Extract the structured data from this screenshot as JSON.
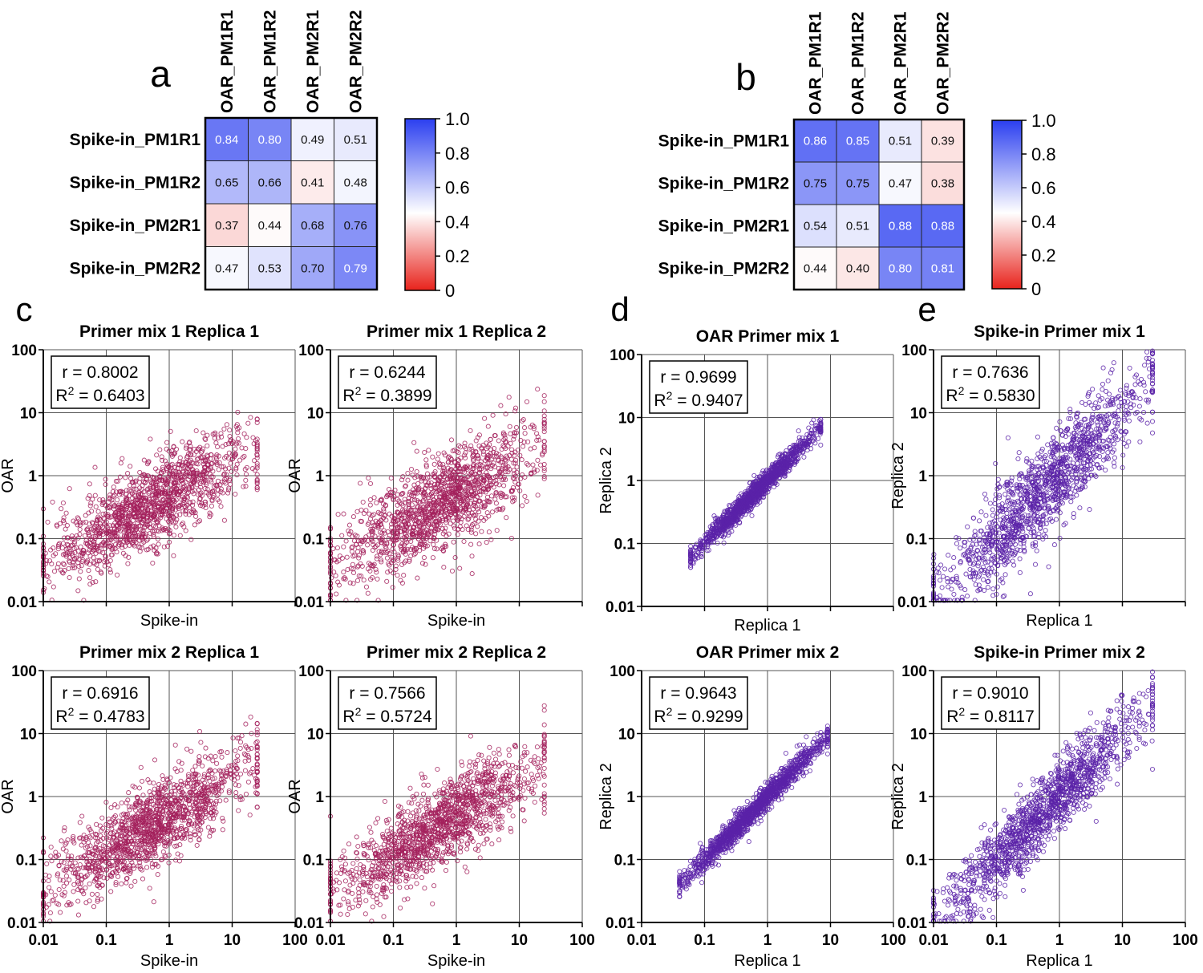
{
  "colors": {
    "hm_low": "#e8231c",
    "hm_mid": "#ffffff",
    "hm_high": "#2b3ff0",
    "scatter_c": "#a3205c",
    "scatter_de": "#5a22a8",
    "grid": "#555555"
  },
  "heatmaps": [
    {
      "panel": "a",
      "columns": [
        "OAR_PM1R1",
        "OAR_PM1R2",
        "OAR_PM2R1",
        "OAR_PM2R2"
      ],
      "rows": [
        "Spike-in_PM1R1",
        "Spike-in_PM1R2",
        "Spike-in_PM2R1",
        "Spike-in_PM2R2"
      ],
      "values": [
        [
          0.84,
          0.8,
          0.49,
          0.51
        ],
        [
          0.65,
          0.66,
          0.41,
          0.48
        ],
        [
          0.37,
          0.44,
          0.68,
          0.76
        ],
        [
          0.47,
          0.53,
          0.7,
          0.79
        ]
      ],
      "labels": [
        [
          "0.84",
          "0.80",
          "0.49",
          "0.51"
        ],
        [
          "0.65",
          "0.66",
          "0.41",
          "0.48"
        ],
        [
          "0.37",
          "0.44",
          "0.68",
          "0.76"
        ],
        [
          "0.47",
          "0.53",
          "0.70",
          "0.79"
        ]
      ],
      "colorbar_ticks": [
        "1.0",
        "0.8",
        "0.6",
        "0.4",
        "0.2",
        "0"
      ]
    },
    {
      "panel": "b",
      "columns": [
        "OAR_PM1R1",
        "OAR_PM1R2",
        "OAR_PM2R1",
        "OAR_PM2R2"
      ],
      "rows": [
        "Spike-in_PM1R1",
        "Spike-in_PM1R2",
        "Spike-in_PM2R1",
        "Spike-in_PM2R2"
      ],
      "values": [
        [
          0.86,
          0.85,
          0.51,
          0.39
        ],
        [
          0.75,
          0.75,
          0.47,
          0.38
        ],
        [
          0.54,
          0.51,
          0.88,
          0.88
        ],
        [
          0.44,
          0.4,
          0.8,
          0.81
        ]
      ],
      "labels": [
        [
          "0.86",
          "0.85",
          "0.51",
          "0.39"
        ],
        [
          "0.75",
          "0.75",
          "0.47",
          "0.38"
        ],
        [
          "0.54",
          "0.51",
          "0.88",
          "0.88"
        ],
        [
          "0.44",
          "0.40",
          "0.80",
          "0.81"
        ]
      ],
      "colorbar_ticks": [
        "1.0",
        "0.8",
        "0.6",
        "0.4",
        "0.2",
        "0"
      ]
    }
  ],
  "scatter_panel_letters": [
    "c",
    "d",
    "e"
  ],
  "chart_data": [
    {
      "type": "scatter",
      "panel": "c",
      "title": "Primer mix 1 Replica 1",
      "xlabel": "Spike-in",
      "ylabel": "OAR",
      "r": "r = 0.8002",
      "r2": "0.6403",
      "r2_prefix": "R",
      "r2_sup": "2",
      "r2_eq": " = ",
      "xlim": [
        0.01,
        100
      ],
      "ylim": [
        0.01,
        100
      ],
      "scale": "log",
      "show_x_ticks": false,
      "x_ticks": [
        "0.01",
        "0.1",
        "1",
        "10",
        "100"
      ],
      "y_ticks": [
        "100",
        "10",
        "1",
        "0.1",
        "0.01"
      ],
      "n_points": 1400,
      "point_spread": 0.33,
      "slope": 0.55,
      "x_range": [
        0.01,
        25
      ],
      "color_key": "scatter_c"
    },
    {
      "type": "scatter",
      "panel": "c",
      "title": "Primer mix 1 Replica 2",
      "xlabel": "Spike-in",
      "ylabel": "OAR",
      "r": "r = 0.6244",
      "r2": "0.3899",
      "r2_prefix": "R",
      "r2_sup": "2",
      "r2_eq": " = ",
      "xlim": [
        0.01,
        100
      ],
      "ylim": [
        0.01,
        100
      ],
      "scale": "log",
      "show_x_ticks": false,
      "x_ticks": [
        "0.01",
        "0.1",
        "1",
        "10",
        "100"
      ],
      "y_ticks": [
        "100",
        "10",
        "1",
        "0.1",
        "0.01"
      ],
      "n_points": 1400,
      "point_spread": 0.38,
      "slope": 0.55,
      "x_range": [
        0.01,
        25
      ],
      "color_key": "scatter_c"
    },
    {
      "type": "scatter",
      "panel": "d",
      "title": "OAR Primer mix 1",
      "xlabel": "Replica 1",
      "ylabel": "Replica 2",
      "r": "r = 0.9699",
      "r2": "0.9407",
      "r2_prefix": "R",
      "r2_sup": "2",
      "r2_eq": " = ",
      "xlim": [
        0.01,
        100
      ],
      "ylim": [
        0.01,
        100
      ],
      "scale": "log",
      "show_x_ticks": false,
      "x_ticks": [
        "0.01",
        "0.1",
        "1",
        "10",
        "100"
      ],
      "y_ticks": [
        "100",
        "10",
        "1",
        "0.1",
        "0.01"
      ],
      "n_points": 1400,
      "point_spread": 0.09,
      "slope": 1.0,
      "x_range": [
        0.06,
        7
      ],
      "color_key": "scatter_de"
    },
    {
      "type": "scatter",
      "panel": "e",
      "title": "Spike-in Primer mix 1",
      "xlabel": "Replica 1",
      "ylabel": "Replica 2",
      "r": "r = 0.7636",
      "r2": "0.5830",
      "r2_prefix": "R",
      "r2_sup": "2",
      "r2_eq": " = ",
      "xlim": [
        0.01,
        100
      ],
      "ylim": [
        0.01,
        100
      ],
      "scale": "log",
      "show_x_ticks": false,
      "x_ticks": [
        "0.01",
        "0.1",
        "1",
        "10",
        "100"
      ],
      "y_ticks": [
        "100",
        "10",
        "1",
        "0.1",
        "0.01"
      ],
      "n_points": 1400,
      "point_spread": 0.38,
      "slope": 1.0,
      "x_range": [
        0.01,
        30
      ],
      "color_key": "scatter_de"
    },
    {
      "type": "scatter",
      "panel": "c",
      "title": "Primer mix 2 Replica 1",
      "xlabel": "Spike-in",
      "ylabel": "OAR",
      "r": "r = 0.6916",
      "r2": "0.4783",
      "r2_prefix": "R",
      "r2_sup": "2",
      "r2_eq": " = ",
      "xlim": [
        0.01,
        100
      ],
      "ylim": [
        0.01,
        100
      ],
      "scale": "log",
      "show_x_ticks": true,
      "x_ticks": [
        "0.01",
        "0.1",
        "1",
        "10",
        "100"
      ],
      "y_ticks": [
        "100",
        "10",
        "1",
        "0.1",
        "0.01"
      ],
      "n_points": 1400,
      "point_spread": 0.33,
      "slope": 0.6,
      "x_range": [
        0.01,
        25
      ],
      "color_key": "scatter_c"
    },
    {
      "type": "scatter",
      "panel": "c",
      "title": "Primer mix 2 Replica 2",
      "xlabel": "Spike-in",
      "ylabel": "OAR",
      "r": "r = 0.7566",
      "r2": "0.5724",
      "r2_prefix": "R",
      "r2_sup": "2",
      "r2_eq": " = ",
      "xlim": [
        0.01,
        100
      ],
      "ylim": [
        0.01,
        100
      ],
      "scale": "log",
      "show_x_ticks": true,
      "x_ticks": [
        "0.01",
        "0.1",
        "1",
        "10",
        "100"
      ],
      "y_ticks": [
        "100",
        "10",
        "1",
        "0.1",
        "0.01"
      ],
      "n_points": 1400,
      "point_spread": 0.33,
      "slope": 0.6,
      "x_range": [
        0.01,
        25
      ],
      "color_key": "scatter_c"
    },
    {
      "type": "scatter",
      "panel": "d",
      "title": "OAR Primer mix 2",
      "xlabel": "Replica 1",
      "ylabel": "Replica 2",
      "r": "r = 0.9643",
      "r2": "0.9299",
      "r2_prefix": "R",
      "r2_sup": "2",
      "r2_eq": " = ",
      "xlim": [
        0.01,
        100
      ],
      "ylim": [
        0.01,
        100
      ],
      "scale": "log",
      "show_x_ticks": true,
      "x_ticks": [
        "0.01",
        "0.1",
        "1",
        "10",
        "100"
      ],
      "y_ticks": [
        "100",
        "10",
        "1",
        "0.1",
        "0.01"
      ],
      "n_points": 1400,
      "point_spread": 0.1,
      "slope": 1.0,
      "x_range": [
        0.04,
        9
      ],
      "color_key": "scatter_de"
    },
    {
      "type": "scatter",
      "panel": "e",
      "title": "Spike-in Primer mix 2",
      "xlabel": "Replica 1",
      "ylabel": "Replica 2",
      "r": "r = 0.9010",
      "r2": "0.8117",
      "r2_prefix": "R",
      "r2_sup": "2",
      "r2_eq": " = ",
      "xlim": [
        0.01,
        100
      ],
      "ylim": [
        0.01,
        100
      ],
      "scale": "log",
      "show_x_ticks": true,
      "x_ticks": [
        "0.01",
        "0.1",
        "1",
        "10",
        "100"
      ],
      "y_ticks": [
        "100",
        "10",
        "1",
        "0.1",
        "0.01"
      ],
      "n_points": 1400,
      "point_spread": 0.3,
      "slope": 1.0,
      "x_range": [
        0.01,
        30
      ],
      "color_key": "scatter_de"
    }
  ]
}
